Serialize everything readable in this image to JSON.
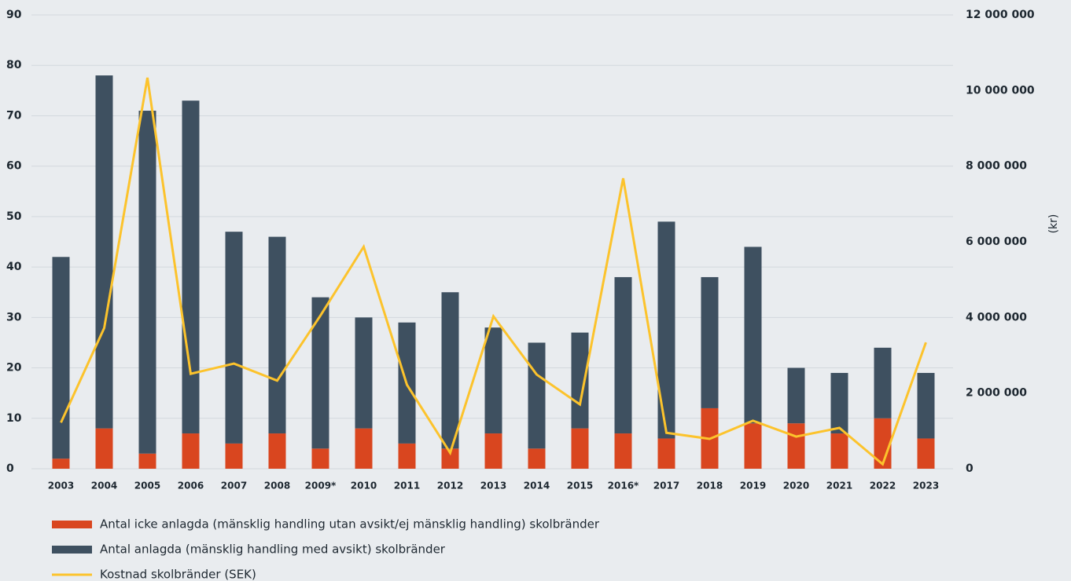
{
  "chart_data": {
    "type": "bar",
    "stacked": true,
    "categories": [
      "2003",
      "2004",
      "2005",
      "2006",
      "2007",
      "2008",
      "2009*",
      "2010",
      "2011",
      "2012",
      "2013",
      "2014",
      "2015",
      "2016*",
      "2017",
      "2018",
      "2019",
      "2020",
      "2021",
      "2022",
      "2023"
    ],
    "series": [
      {
        "name": "Antal icke anlagda (mänsklig handling utan avsikt/ej mänsklig handling) skolbränder",
        "color": "#d9461f",
        "type": "bar",
        "values": [
          2,
          8,
          3,
          7,
          5,
          7,
          4,
          8,
          5,
          4,
          7,
          4,
          8,
          7,
          6,
          12,
          9,
          9,
          7,
          10,
          6
        ]
      },
      {
        "name": "Antal anlagda (mänsklig handling med avsikt) skolbränder",
        "color": "#3e5060",
        "type": "bar",
        "values": [
          40,
          70,
          68,
          66,
          42,
          39,
          30,
          22,
          24,
          31,
          21,
          21,
          19,
          31,
          43,
          26,
          35,
          11,
          12,
          14,
          13
        ]
      },
      {
        "name": "Kostnad skolbränder (SEK)",
        "color": "#fcc32c",
        "type": "line",
        "axis": "y2",
        "values": [
          1220000,
          3720000,
          10340000,
          2510000,
          2780000,
          2330000,
          4050000,
          5870000,
          2220000,
          420000,
          4030000,
          2490000,
          1700000,
          7680000,
          950000,
          790000,
          1270000,
          850000,
          1080000,
          120000,
          3340000
        ]
      }
    ],
    "ylim": [
      0,
      90
    ],
    "yticks": [
      0,
      10,
      20,
      30,
      40,
      50,
      60,
      70,
      80,
      90
    ],
    "y2label": "(kr)",
    "y2lim": [
      0,
      12000000
    ],
    "y2ticks": [
      0,
      {
        "value": 2000000,
        "label": "2 000 000"
      },
      {
        "value": 4000000,
        "label": "4 000 000"
      },
      {
        "value": 6000000,
        "label": "6 000 000"
      },
      {
        "value": 8000000,
        "label": "8 000 000"
      },
      {
        "value": 10000000,
        "label": "10 000 000"
      },
      {
        "value": 12000000,
        "label": "12 000 000"
      }
    ],
    "grid": true,
    "legend": "bottom"
  }
}
